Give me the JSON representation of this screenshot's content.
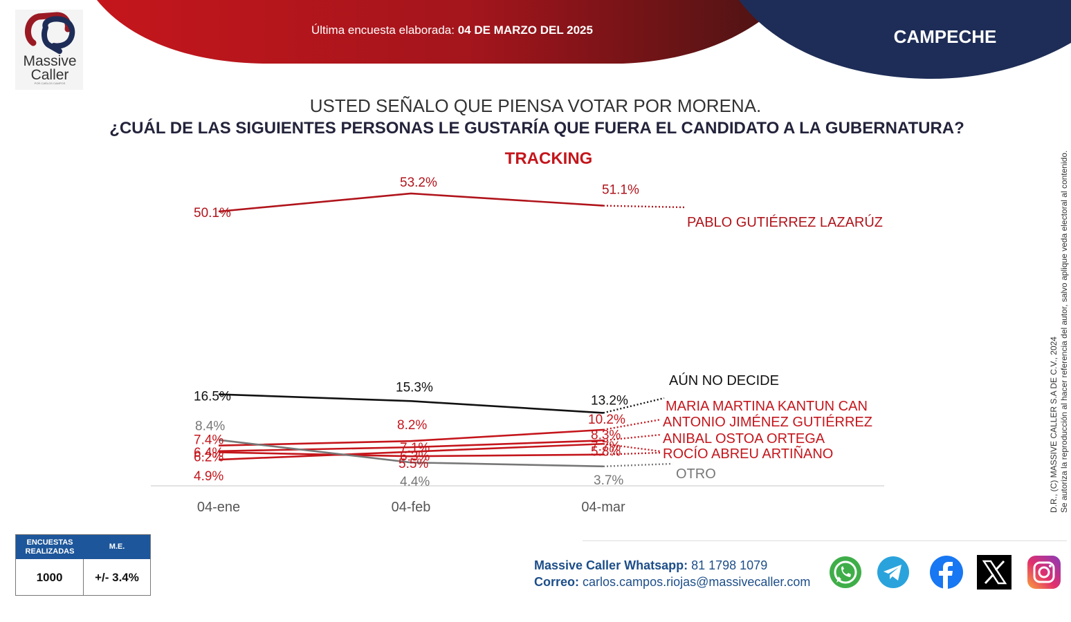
{
  "brand": {
    "name_line1": "Massive",
    "name_line2": "Caller",
    "tagline": "POR CARLOS CAMPOS",
    "accent_red": "#c4161c",
    "accent_navy": "#1e2d57"
  },
  "header": {
    "date_label": "Última encuesta elaborada:",
    "date_value": "04 DE MARZO DEL 2025",
    "state": "CAMPECHE"
  },
  "question": {
    "subtitle": "USTED SEÑALO QUE PIENSA VOTAR POR MORENA.",
    "title": "¿CUÁL DE LAS SIGUIENTES PERSONAS LE GUSTARÍA QUE FUERA EL CANDIDATO A LA GUBERNATURA?",
    "section": "TRACKING"
  },
  "chart_data": {
    "type": "line",
    "title": "TRACKING",
    "categories": [
      "04-ene",
      "04-feb",
      "04-mar"
    ],
    "ylim": [
      0,
      60
    ],
    "grid": false,
    "legend": "direct labels at right end of lines",
    "series": [
      {
        "name": "PABLO GUTIÉRREZ LAZARÚZ",
        "values": [
          50.1,
          53.2,
          51.1
        ],
        "labels": [
          "50.1%",
          "53.2%",
          "51.1%"
        ],
        "color": "#b0141b"
      },
      {
        "name": "AÚN NO DECIDE",
        "values": [
          16.5,
          15.3,
          13.2
        ],
        "labels": [
          "16.5%",
          "15.3%",
          "13.2%"
        ],
        "color": "#111111"
      },
      {
        "name": "MARIA MARTINA KANTUN CAN",
        "values": [
          7.4,
          8.2,
          10.2
        ],
        "labels": [
          "7.4%",
          "8.2%",
          "10.2%"
        ],
        "color": "#c4161c"
      },
      {
        "name": "ANTONIO JIMÉNEZ GUTIÉRREZ",
        "values": [
          6.4,
          7.1,
          8.3
        ],
        "labels": [
          "6.4%",
          "7.1%",
          "8.3%"
        ],
        "color": "#c4161c"
      },
      {
        "name": "ANIBAL OSTOA ORTEGA",
        "values": [
          4.9,
          6.3,
          7.7
        ],
        "labels": [
          "4.9%",
          "6.3%",
          "7.7%"
        ],
        "color": "#c4161c"
      },
      {
        "name": "ROCÍO ABREU ARTIÑANO",
        "values": [
          6.2,
          5.5,
          5.8
        ],
        "labels": [
          "6.2%",
          "5.5%",
          "5.8%"
        ],
        "color": "#c4161c"
      },
      {
        "name": "OTRO",
        "values": [
          8.4,
          4.4,
          3.7
        ],
        "labels": [
          "8.4%",
          "4.4%",
          "3.7%"
        ],
        "color": "#777777"
      }
    ]
  },
  "stats": {
    "surveys_header": "ENCUESTAS REALIZADAS",
    "surveys_value": "1000",
    "me_header": "M.E.",
    "me_value": "+/- 3.4%"
  },
  "contact": {
    "whatsapp_label": "Massive Caller Whatsapp:",
    "whatsapp_value": "81 1798 1079",
    "email_label": "Correo:",
    "email_value": "carlos.campos.riojas@massivecaller.com"
  },
  "copyright": {
    "line1": "D.R., (C) MASSIVE CALLER S.A DE C.V., 2024",
    "line2": "Se autoriza la reproducción al hacer referencia del autor, salvo aplique veda electoral al contenido."
  },
  "social_icons": [
    "whatsapp-icon",
    "telegram-icon",
    "facebook-icon",
    "x-icon",
    "instagram-icon"
  ]
}
